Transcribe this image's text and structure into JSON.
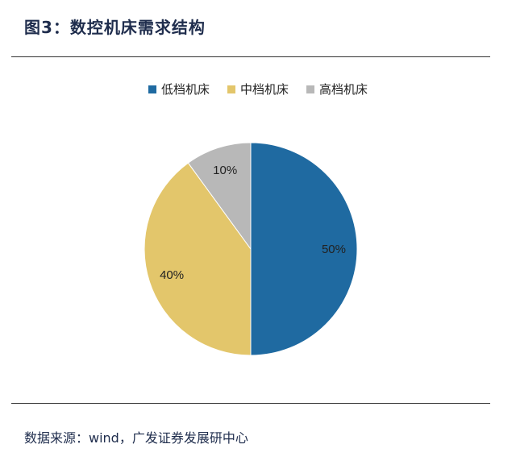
{
  "header": {
    "title": "图3：数控机床需求结构"
  },
  "footer": {
    "source": "数据来源：wind，广发证券发展研中心"
  },
  "chart_data": {
    "type": "pie",
    "categories": [
      "低档机床",
      "中档机床",
      "高档机床"
    ],
    "values": [
      50,
      40,
      10
    ],
    "labels": [
      "50%",
      "40%",
      "10%"
    ],
    "colors": [
      "#1f6aa1",
      "#e3c66b",
      "#b8b8b8"
    ],
    "legend": "top"
  }
}
